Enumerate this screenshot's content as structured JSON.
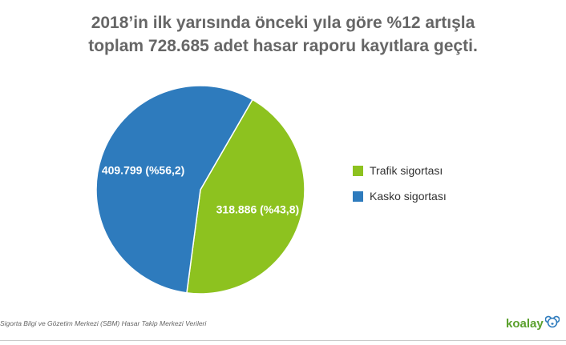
{
  "title": {
    "line1": "2018’in ilk yarısında önceki yıla göre %12 artışla",
    "line2": "toplam 728.685 adet hasar raporu kayıtlara geçti."
  },
  "chart_data": {
    "type": "pie",
    "slices": [
      {
        "name": "Trafik sigortası",
        "value": 318886,
        "label": "318.886 (%43,8)",
        "color": "#8dc21f"
      },
      {
        "name": "Kasko sigortası",
        "value": 409799,
        "label": "409.799 (%56,2)",
        "color": "#2e7bbd"
      }
    ],
    "legend": "right"
  },
  "source": "Sigorta Bilgi ve Gözetim Merkezi (SBM) Hasar Takip Merkezi Verileri",
  "logo": {
    "text": "koalay",
    "icon": "koala-icon",
    "color": "#5aa02c"
  }
}
